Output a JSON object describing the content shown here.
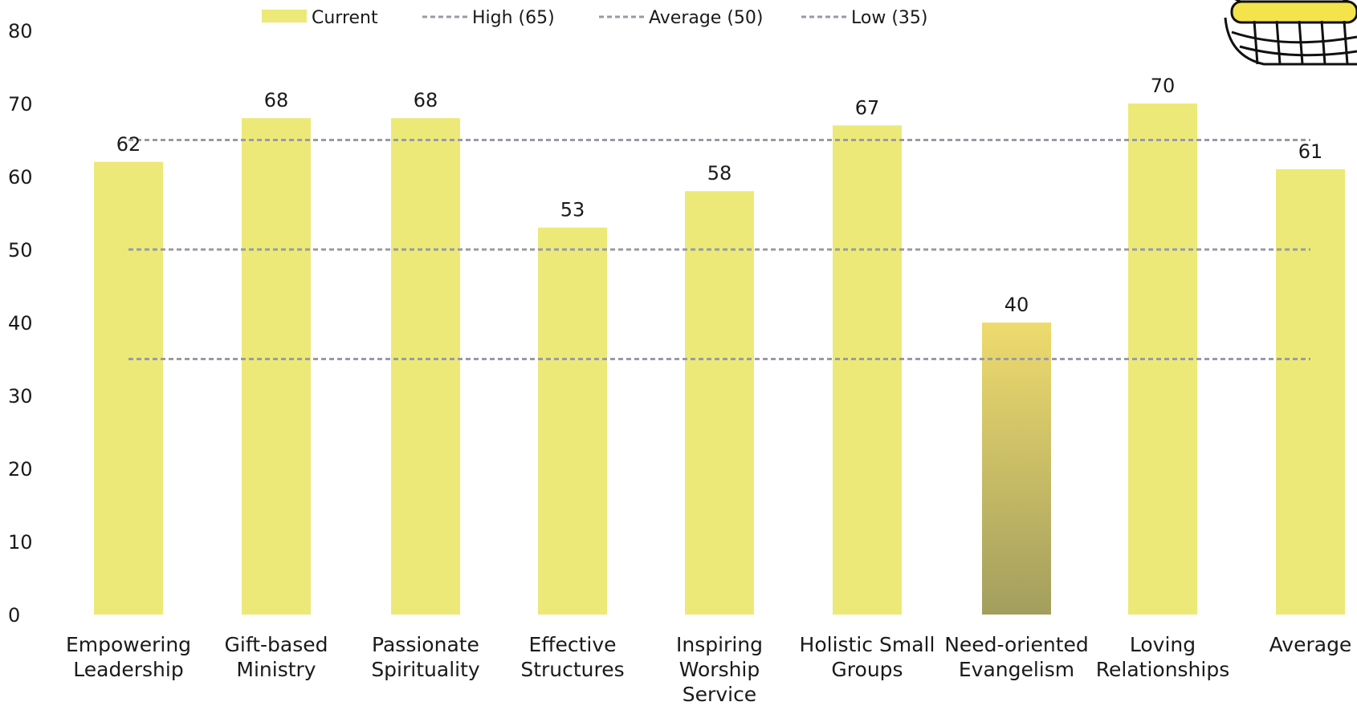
{
  "chart_data": {
    "type": "bar",
    "categories": [
      [
        "Empowering",
        "Leadership"
      ],
      [
        "Gift-based",
        "Ministry"
      ],
      [
        "Passionate",
        "Spirituality"
      ],
      [
        "Effective",
        "Structures"
      ],
      [
        "Inspiring",
        "Worship",
        "Service"
      ],
      [
        "Holistic Small",
        "Groups"
      ],
      [
        "Need-oriented",
        "Evangelism"
      ],
      [
        "Loving",
        "Relationships"
      ],
      [
        "Average"
      ]
    ],
    "series": [
      {
        "name": "Current",
        "values": [
          62,
          68,
          68,
          53,
          58,
          67,
          40,
          70,
          61
        ]
      }
    ],
    "reference_lines": [
      {
        "name": "High (65)",
        "value": 65
      },
      {
        "name": "Average (50)",
        "value": 50
      },
      {
        "name": "Low (35)",
        "value": 35
      }
    ],
    "ylim": [
      0,
      80
    ],
    "yticks": [
      0,
      10,
      20,
      30,
      40,
      50,
      60,
      70,
      80
    ],
    "grid": false,
    "legend_position": "top",
    "colors": {
      "bar": "#ece979",
      "bar_highlight_top": "#eedb6e",
      "bar_highlight_bottom": "#a39e5e",
      "reference_line": "#9a9aa6"
    },
    "highlight_index": 6
  }
}
